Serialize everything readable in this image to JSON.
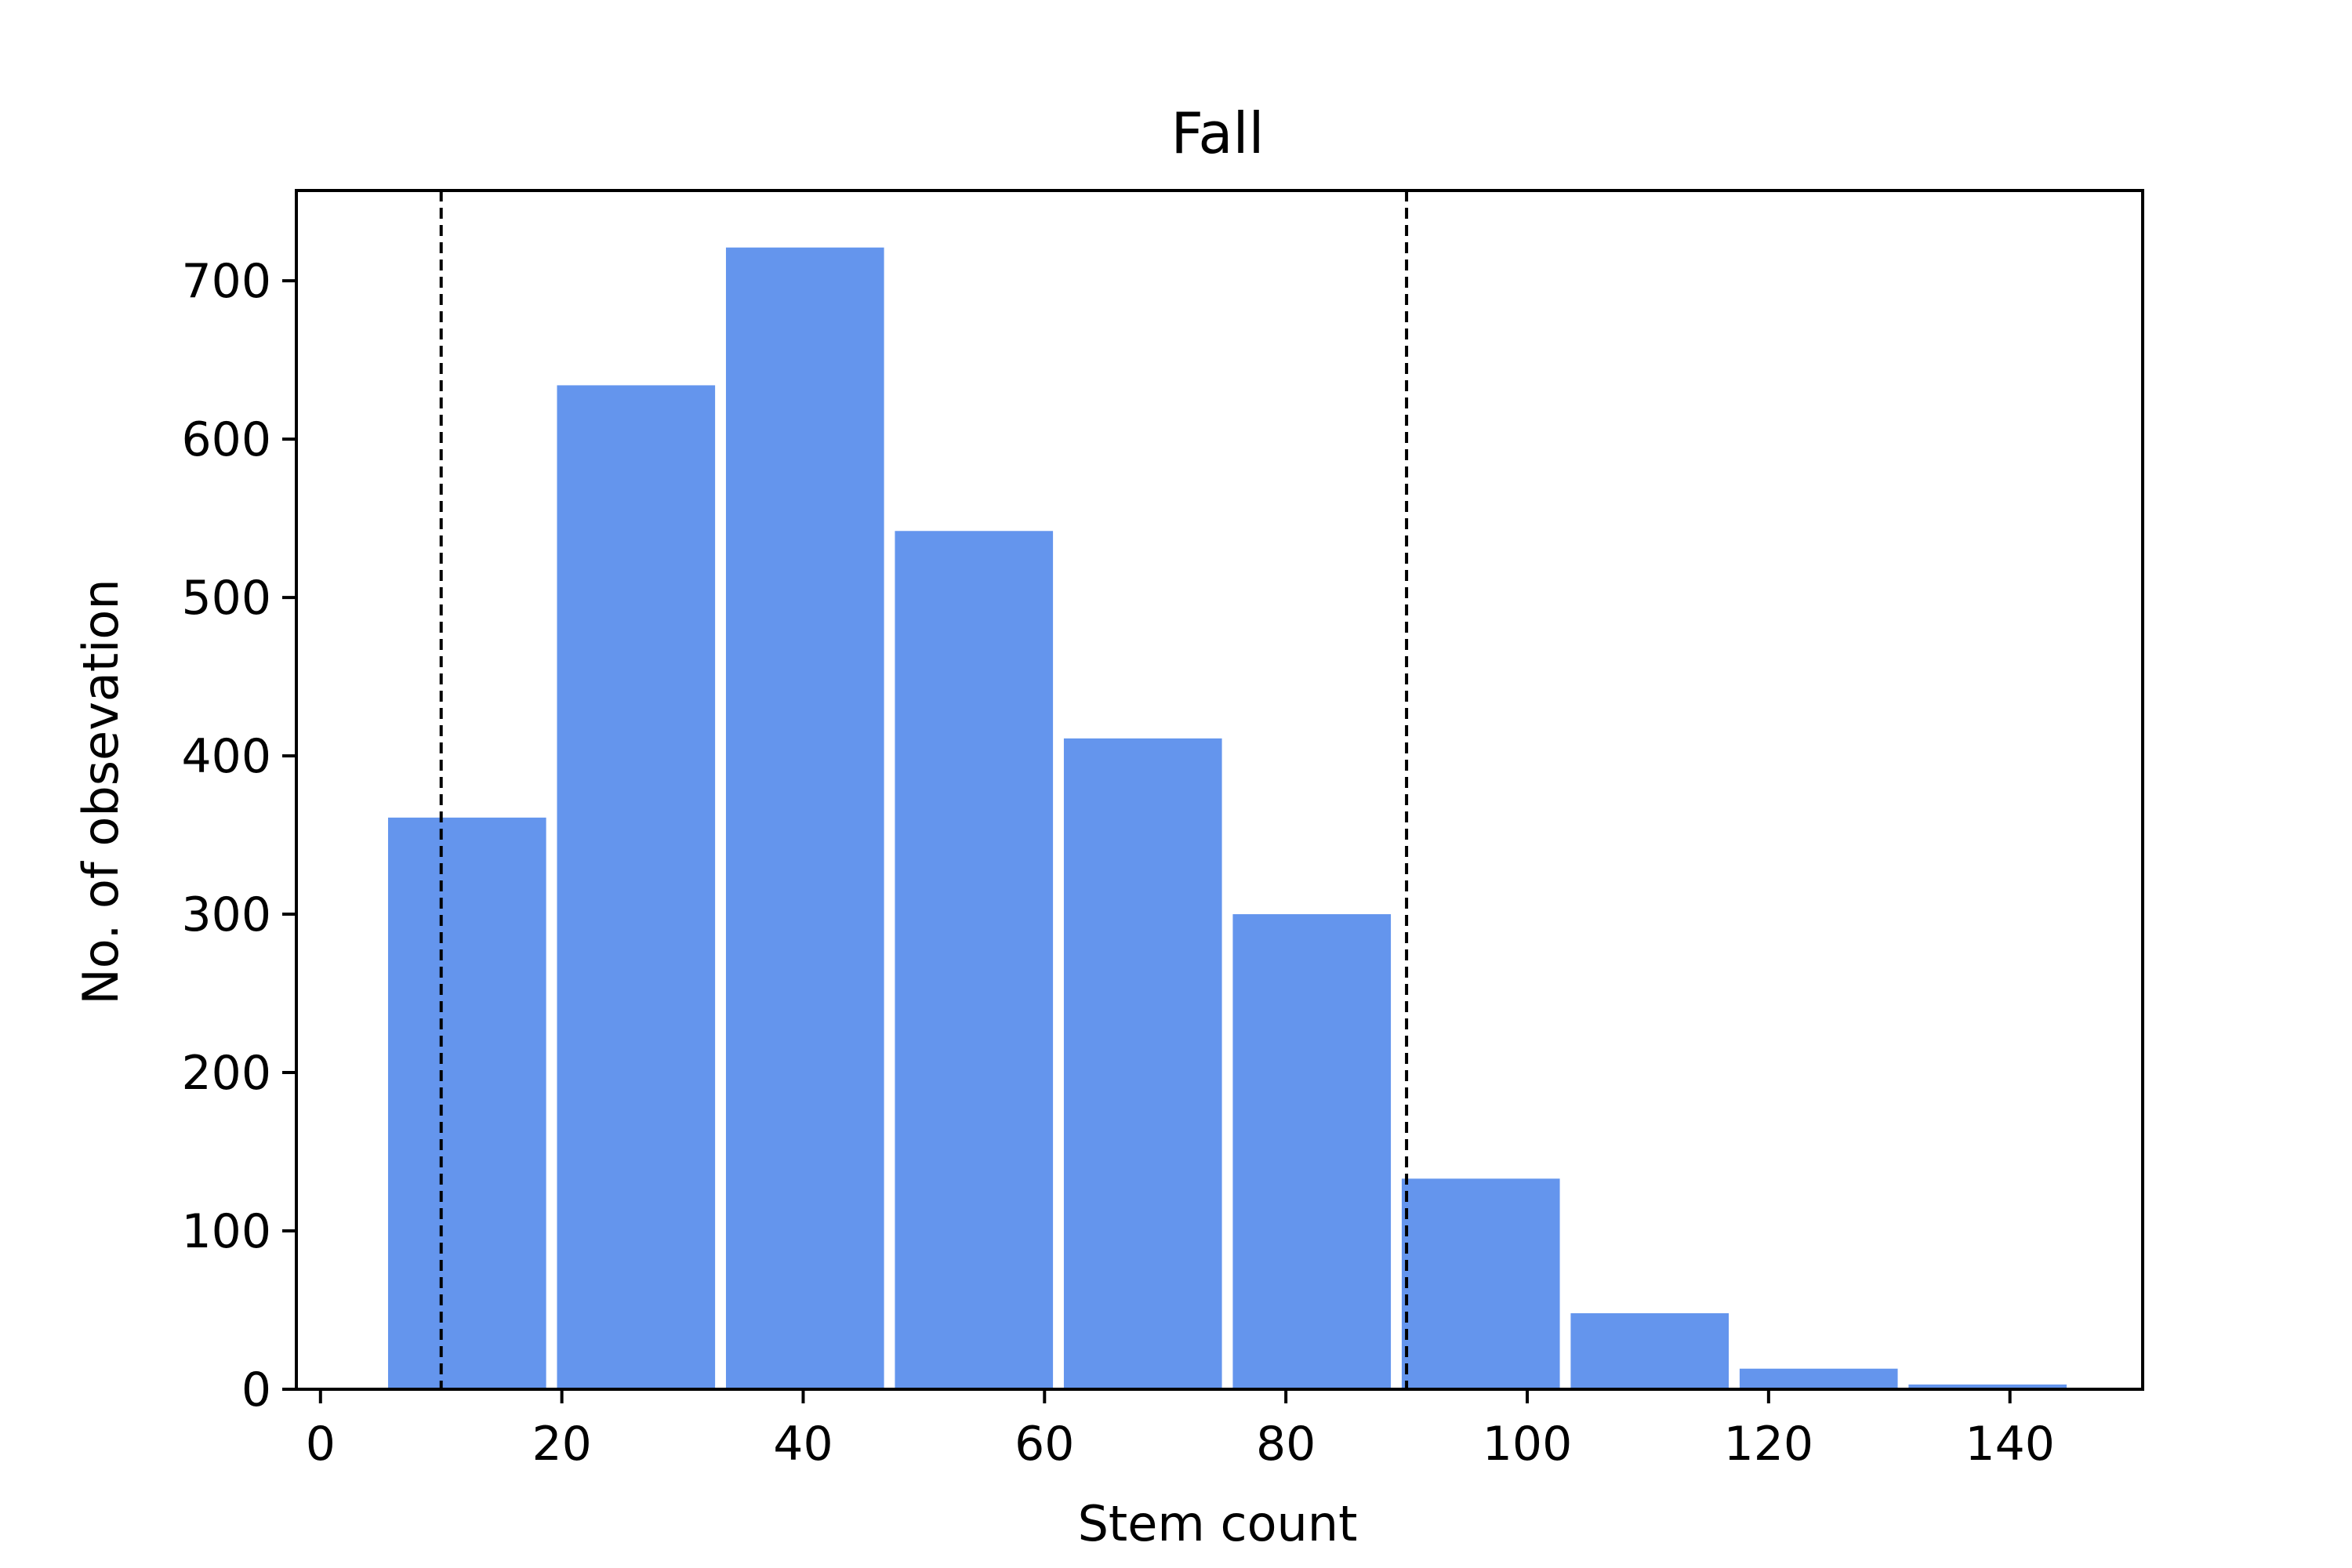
{
  "chart_data": {
    "type": "bar",
    "title": "Fall",
    "xlabel": "Stem count",
    "ylabel": "No. of obsevation",
    "xlim": [
      -2,
      151
    ],
    "ylim": [
      0,
      757
    ],
    "xticks": [
      0,
      20,
      40,
      60,
      80,
      100,
      120,
      140
    ],
    "yticks": [
      0,
      100,
      200,
      300,
      400,
      500,
      600,
      700
    ],
    "bins": [
      {
        "start": 5.6,
        "end": 18.7,
        "value": 361
      },
      {
        "start": 19.6,
        "end": 32.7,
        "value": 634
      },
      {
        "start": 33.6,
        "end": 46.7,
        "value": 721
      },
      {
        "start": 47.6,
        "end": 60.7,
        "value": 542
      },
      {
        "start": 61.6,
        "end": 74.7,
        "value": 411
      },
      {
        "start": 75.6,
        "end": 88.7,
        "value": 300
      },
      {
        "start": 89.6,
        "end": 102.7,
        "value": 133
      },
      {
        "start": 103.6,
        "end": 116.7,
        "value": 48
      },
      {
        "start": 117.6,
        "end": 130.7,
        "value": 13
      },
      {
        "start": 131.6,
        "end": 144.7,
        "value": 3
      }
    ],
    "vlines": [
      10,
      90
    ],
    "bar_color": "#6495ED",
    "vline_color": "#000000",
    "grid": false,
    "legend": "none"
  }
}
